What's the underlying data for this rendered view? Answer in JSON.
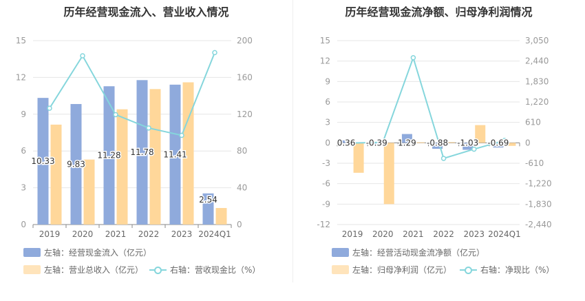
{
  "colors": {
    "bar1": "#8faadc",
    "bar2": "#ffd79a",
    "line": "#85d6dc",
    "axis": "#999999",
    "grid": "#e6e6e6",
    "label": "#333333"
  },
  "chart_data": [
    {
      "type": "bar",
      "title": "历年经营现金流入、营业收入情况",
      "categories": [
        "2019",
        "2020",
        "2021",
        "2022",
        "2023",
        "2024Q1"
      ],
      "series": [
        {
          "name": "左轴：经营现金流入（亿元）",
          "axis": "left",
          "values": [
            10.33,
            9.83,
            11.28,
            11.78,
            11.41,
            2.54
          ],
          "labels": [
            "10.33",
            "9.83",
            "11.28",
            "11.78",
            "11.41",
            "2.54"
          ]
        },
        {
          "name": "左轴：营业总收入（亿元）",
          "axis": "left",
          "values": [
            8.15,
            5.3,
            9.4,
            11.05,
            11.6,
            1.35
          ]
        },
        {
          "name": "右轴：营收现金比（%）",
          "axis": "right",
          "kind": "line",
          "values": [
            126.5,
            183.5,
            119.5,
            105.0,
            97.0,
            187.0
          ]
        }
      ],
      "y_left": {
        "range": [
          0,
          15
        ],
        "ticks": [
          "0",
          "3",
          "6",
          "9",
          "12",
          "15"
        ]
      },
      "y_right": {
        "range": [
          0,
          200
        ],
        "ticks": [
          "0",
          "40",
          "80",
          "120",
          "160",
          "200"
        ]
      },
      "legend": [
        "左轴：经营现金流入（亿元）",
        "左轴：营业总收入（亿元）",
        "右轴：营收现金比（%）"
      ],
      "legend_position": "bottom",
      "grid": true
    },
    {
      "type": "bar",
      "title": "历年经营现金流净额、归母净利润情况",
      "categories": [
        "2019",
        "2020",
        "2021",
        "2022",
        "2023",
        "2024Q1"
      ],
      "series": [
        {
          "name": "左轴：经营活动现金流净额（亿元）",
          "axis": "left",
          "values": [
            0.36,
            -0.39,
            1.29,
            -0.88,
            -1.03,
            -0.69
          ],
          "labels": [
            "0.36",
            "-0.39",
            "1.29",
            "-0.88",
            "-1.03",
            "-0.69"
          ]
        },
        {
          "name": "左轴：归母净利润（亿元）",
          "axis": "left",
          "values": [
            -4.4,
            -9.0,
            0.08,
            0.1,
            2.6,
            -0.45
          ]
        },
        {
          "name": "右轴：净现比（%）",
          "axis": "right",
          "kind": "line",
          "values": [
            -5,
            15,
            2540,
            -465,
            -190,
            70
          ]
        }
      ],
      "y_left": {
        "range": [
          -12,
          15
        ],
        "ticks": [
          "-12",
          "-9",
          "-6",
          "-3",
          "0",
          "3",
          "6",
          "9",
          "12",
          "15"
        ]
      },
      "y_right": {
        "range": [
          -2440,
          3050
        ],
        "ticks": [
          "-2,440",
          "-1,830",
          "-1,220",
          "-610",
          "0",
          "610",
          "1,220",
          "1,830",
          "2,440",
          "3,050"
        ]
      },
      "legend": [
        "左轴：经营活动现金流净额（亿元）",
        "左轴：归母净利润（亿元）",
        "右轴：净现比（%）"
      ],
      "legend_position": "bottom",
      "grid": true
    }
  ]
}
